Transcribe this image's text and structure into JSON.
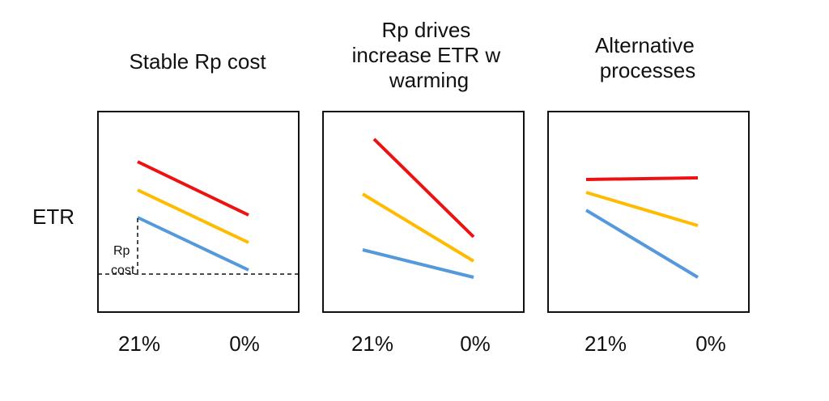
{
  "y_label": "ETR",
  "colors": {
    "red": "#ee1111",
    "orange": "#ffbb00",
    "blue": "#5599dd"
  },
  "panels": [
    {
      "title_lines": [
        "Stable Rp cost"
      ],
      "x_ticks": [
        "21%",
        "0%"
      ],
      "annotation_lines": [
        "Rp",
        "cost"
      ]
    },
    {
      "title_lines": [
        "Rp drives",
        "increase ETR w",
        "warming"
      ],
      "x_ticks": [
        "21%",
        "0%"
      ]
    },
    {
      "title_lines": [
        "Alternative",
        "processes"
      ],
      "x_ticks": [
        "21%",
        "0%"
      ]
    }
  ]
}
